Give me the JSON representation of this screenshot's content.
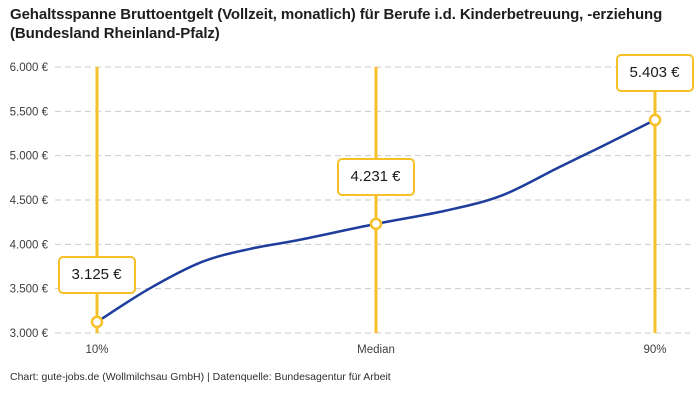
{
  "title": "Gehaltsspanne Bruttoentgelt (Vollzeit, monatlich) für Berufe i.d. Kinderbetreuung, -erziehung (Bundesland Rheinland-Pfalz)",
  "footer": "Chart: gute-jobs.de (Wollmilchsau GmbH) | Datenquelle: Bundesagentur für Arbeit",
  "colors": {
    "accent_yellow": "#f7c028",
    "line_blue": "#1f3d9c",
    "grid": "#cbcbcb",
    "title_text": "#1e1e1e",
    "axis_text": "#3d3d3d",
    "footer_text": "#2f2f2f",
    "label_text": "#1a1a1a",
    "background": "#ffffff"
  },
  "chart_data": {
    "type": "line",
    "title": "Gehaltsspanne Bruttoentgelt (Vollzeit, monatlich) für Berufe i.d. Kinderbetreuung, -erziehung (Bundesland Rheinland-Pfalz)",
    "xlabel": "",
    "ylabel": "",
    "ylim": [
      3000,
      6000
    ],
    "grid": "horizontal-dashed",
    "legend": "none",
    "y_ticks": [
      {
        "value": 3000,
        "label": "3.000 €"
      },
      {
        "value": 3500,
        "label": "3.500 €"
      },
      {
        "value": 4000,
        "label": "4.000 €"
      },
      {
        "value": 4500,
        "label": "4.500 €"
      },
      {
        "value": 5000,
        "label": "5.000 €"
      },
      {
        "value": 5500,
        "label": "5.500 €"
      },
      {
        "value": 6000,
        "label": "6.000 €"
      }
    ],
    "x_ticks": [
      {
        "percentile": 10,
        "label": "10%"
      },
      {
        "percentile": 50,
        "label": "Median"
      },
      {
        "percentile": 90,
        "label": "90%"
      }
    ],
    "points": [
      {
        "percentile": 10,
        "label": "10%",
        "value": 3125,
        "value_label": "3.125 €"
      },
      {
        "percentile": 50,
        "label": "Median",
        "value": 4231,
        "value_label": "4.231 €"
      },
      {
        "percentile": 90,
        "label": "90%",
        "value": 5403,
        "value_label": "5.403 €"
      }
    ],
    "curve_samples": [
      {
        "percentile": 10,
        "value": 3125
      },
      {
        "percentile": 17.5,
        "value": 3500
      },
      {
        "percentile": 25,
        "value": 3800
      },
      {
        "percentile": 32,
        "value": 3950
      },
      {
        "percentile": 39,
        "value": 4050
      },
      {
        "percentile": 50,
        "value": 4231
      },
      {
        "percentile": 60,
        "value": 4380
      },
      {
        "percentile": 68,
        "value": 4550
      },
      {
        "percentile": 76,
        "value": 4860
      },
      {
        "percentile": 82,
        "value": 5090
      },
      {
        "percentile": 90,
        "value": 5403
      }
    ]
  }
}
